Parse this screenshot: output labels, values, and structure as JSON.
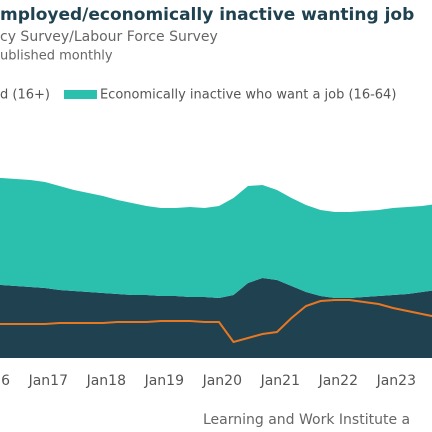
{
  "chart_data": {
    "type": "stacked_area",
    "title": "mployed/economically inactive wanting job",
    "subtitle": "cy Survey/Labour Force Survey",
    "note": "ublished monthly",
    "source": "Learning and Work Institute a",
    "categories": [
      "6",
      null,
      null,
      null,
      "Jan17",
      null,
      null,
      null,
      "Jan18",
      null,
      null,
      null,
      "Jan19",
      null,
      null,
      null,
      "Jan20",
      null,
      null,
      null,
      "Jan21",
      null,
      null,
      null,
      "Jan22",
      null,
      null,
      null,
      "Jan23",
      null,
      null,
      null
    ],
    "ylim": [
      0,
      180
    ],
    "series": [
      {
        "name": "d (16+)",
        "color": "#1f4150",
        "stack": true,
        "values": [
          74,
          73,
          72,
          71,
          70,
          68,
          67,
          66,
          65,
          64,
          63,
          63,
          62,
          62,
          61,
          61,
          60,
          63,
          75,
          80,
          78,
          72,
          66,
          62,
          60,
          60,
          61,
          62,
          63,
          64,
          66,
          68
        ]
      },
      {
        "name": "Economically inactive who want a job (16-64)",
        "color": "#2bbfae",
        "stack": true,
        "values": [
          106,
          107,
          107,
          107,
          106,
          104,
          101,
          99,
          97,
          94,
          92,
          89,
          88,
          88,
          90,
          89,
          92,
          97,
          97,
          93,
          90,
          88,
          87,
          86,
          86,
          86,
          86,
          86,
          87,
          87,
          86,
          86
        ]
      },
      {
        "color": "#e87722",
        "stack": false,
        "values": [
          34,
          34,
          34,
          34,
          34,
          35,
          35,
          35,
          35,
          36,
          36,
          36,
          37,
          37,
          37,
          36,
          36,
          16,
          20,
          24,
          26,
          40,
          52,
          57,
          58,
          58,
          56,
          54,
          50,
          47,
          44,
          41
        ]
      }
    ]
  }
}
